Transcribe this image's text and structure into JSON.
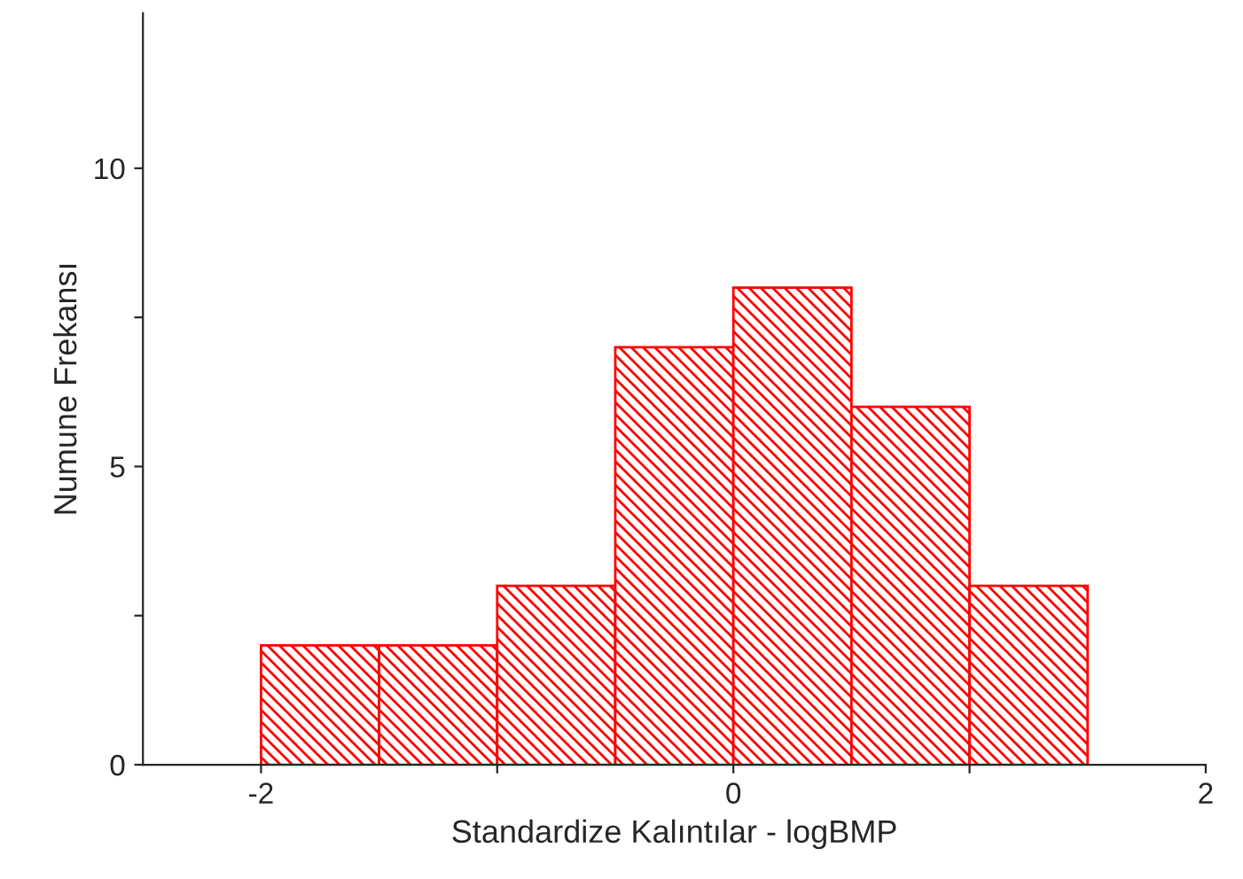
{
  "chart_data": {
    "type": "histogram",
    "xlabel": "Standardize Kalıntılar - logBMP",
    "ylabel": "Numune Frekansı",
    "bins": [
      -2,
      -1.5,
      -1,
      -0.5,
      0,
      0.5,
      1,
      1.5
    ],
    "values": [
      2,
      2,
      3,
      7,
      8,
      6,
      3
    ],
    "color": "#ff0000",
    "xlim": [
      -2.5,
      2
    ],
    "xticks": [
      -2,
      {
        "value": -1,
        "label": null
      },
      0,
      {
        "value": 1,
        "label": null
      },
      2
    ],
    "ylim": [
      0,
      12.6
    ],
    "yticks": [
      0,
      {
        "value": 2.5,
        "label": null
      },
      5,
      {
        "value": 7.5,
        "label": null
      },
      10
    ],
    "grid": false
  }
}
